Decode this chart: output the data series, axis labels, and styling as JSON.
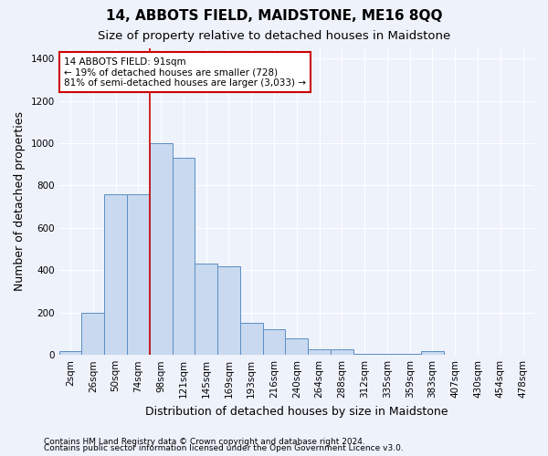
{
  "title": "14, ABBOTS FIELD, MAIDSTONE, ME16 8QQ",
  "subtitle": "Size of property relative to detached houses in Maidstone",
  "xlabel": "Distribution of detached houses by size in Maidstone",
  "ylabel": "Number of detached properties",
  "categories": [
    "2sqm",
    "26sqm",
    "50sqm",
    "74sqm",
    "98sqm",
    "121sqm",
    "145sqm",
    "169sqm",
    "193sqm",
    "216sqm",
    "240sqm",
    "264sqm",
    "288sqm",
    "312sqm",
    "335sqm",
    "359sqm",
    "383sqm",
    "407sqm",
    "430sqm",
    "454sqm",
    "478sqm"
  ],
  "values": [
    20,
    200,
    760,
    760,
    1000,
    930,
    430,
    420,
    150,
    120,
    80,
    25,
    25,
    5,
    5,
    5,
    20,
    0,
    0,
    0,
    0
  ],
  "bar_color": "#c9d9f0",
  "bar_edge_color": "#5b8ec4",
  "vline_x_index": 4,
  "vline_color": "#cc0000",
  "annotation_text": "14 ABBOTS FIELD: 91sqm\n← 19% of detached houses are smaller (728)\n81% of semi-detached houses are larger (3,033) →",
  "annotation_box_facecolor": "#ffffff",
  "annotation_box_edgecolor": "#cc0000",
  "ylim": [
    0,
    1450
  ],
  "yticks": [
    0,
    200,
    400,
    600,
    800,
    1000,
    1200,
    1400
  ],
  "footer_line1": "Contains HM Land Registry data © Crown copyright and database right 2024.",
  "footer_line2": "Contains public sector information licensed under the Open Government Licence v3.0.",
  "bg_color": "#eef2fb",
  "plot_bg_color": "#eef2fb",
  "grid_color": "#c8d0e8",
  "title_fontsize": 11,
  "subtitle_fontsize": 9.5,
  "ylabel_fontsize": 9,
  "xlabel_fontsize": 9,
  "tick_fontsize": 7.5,
  "annotation_fontsize": 7.5,
  "footer_fontsize": 6.5
}
